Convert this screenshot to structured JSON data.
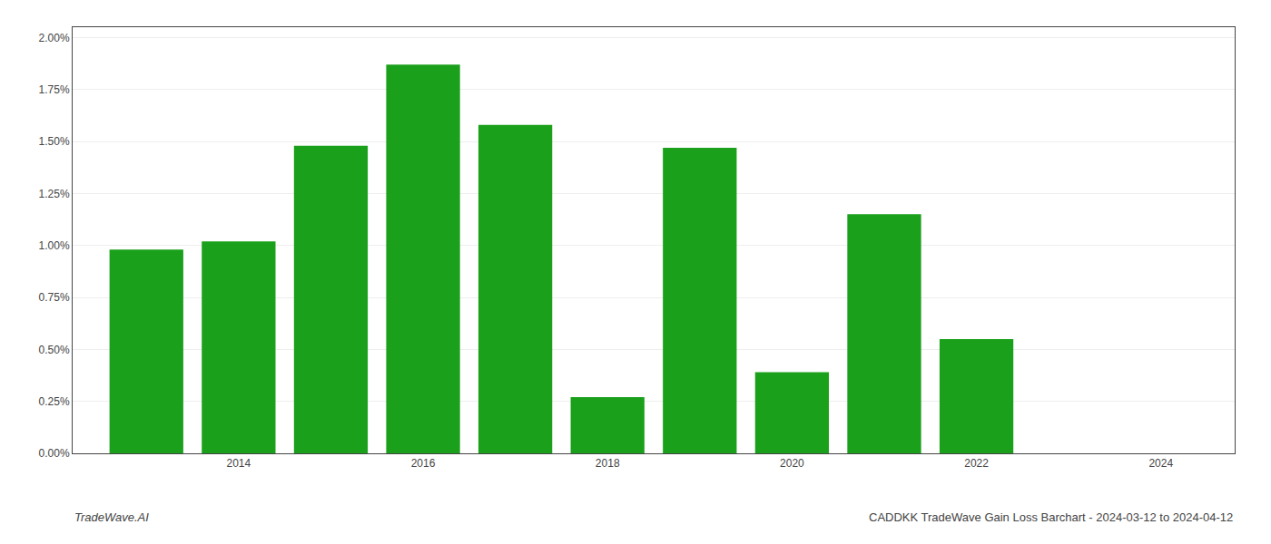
{
  "chart_data": {
    "type": "bar",
    "x": [
      2013,
      2014,
      2015,
      2016,
      2017,
      2018,
      2019,
      2020,
      2021,
      2022
    ],
    "values": [
      0.0098,
      0.0102,
      0.0148,
      0.0187,
      0.0158,
      0.0027,
      0.0147,
      0.0039,
      0.0115,
      0.0055
    ],
    "color": "#1aa01a",
    "xlim": [
      2012.2,
      2024.8
    ],
    "xticks": [
      2014,
      2016,
      2018,
      2020,
      2022,
      2024
    ],
    "ylim": [
      0,
      0.0205
    ],
    "yticks": [
      {
        "value": 0.0,
        "label": "0.00%"
      },
      {
        "value": 0.0025,
        "label": "0.25%"
      },
      {
        "value": 0.005,
        "label": "0.50%"
      },
      {
        "value": 0.0075,
        "label": "0.75%"
      },
      {
        "value": 0.01,
        "label": "1.00%"
      },
      {
        "value": 0.0125,
        "label": "1.25%"
      },
      {
        "value": 0.015,
        "label": "1.50%"
      },
      {
        "value": 0.0175,
        "label": "1.75%"
      },
      {
        "value": 0.02,
        "label": "2.00%"
      }
    ],
    "grid": true,
    "annotations": [
      "TradeWave.AI",
      "CADDKK TradeWave Gain Loss Barchart - 2024-03-12 to 2024-04-12"
    ]
  }
}
